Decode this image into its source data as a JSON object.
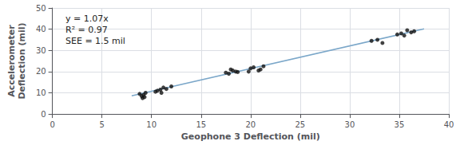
{
  "chart_data": {
    "type": "scatter",
    "xlabel": "Geophone 3 Deflection (mil)",
    "ylabel": "Accelerometer\nDeflection (mil)",
    "annotation": "y = 1.07x\nR² = 0.97\nSEE = 1.5 mil",
    "xlim": [
      0,
      40
    ],
    "ylim": [
      0,
      50
    ],
    "xticks": [
      0,
      5,
      10,
      15,
      20,
      25,
      30,
      35,
      40
    ],
    "yticks": [
      0,
      10,
      20,
      30,
      40,
      50
    ],
    "grid": true,
    "series": [
      {
        "type": "line",
        "color": "#7ba7c9",
        "x": [
          8.0,
          37.5
        ],
        "values": [
          8.56,
          40.125
        ]
      },
      {
        "type": "scatter",
        "color": "#111111",
        "marker": "circle",
        "x": [
          8.8,
          9.0,
          9.1,
          9.2,
          9.3,
          9.4,
          10.4,
          10.6,
          10.9,
          11.0,
          11.2,
          11.5,
          12.0,
          17.5,
          17.8,
          18.0,
          18.2,
          18.5,
          18.7,
          19.8,
          20.0,
          20.3,
          20.8,
          21.0,
          21.3,
          32.2,
          32.8,
          33.3,
          34.8,
          35.2,
          35.5,
          35.8,
          36.2,
          36.5
        ],
        "values": [
          9.5,
          8.5,
          7.5,
          9.0,
          8.0,
          10.0,
          10.5,
          11.0,
          11.5,
          10.0,
          12.5,
          11.8,
          13.0,
          19.5,
          19.0,
          21.0,
          20.5,
          20.0,
          19.8,
          20.0,
          21.5,
          22.0,
          20.5,
          21.0,
          22.5,
          34.5,
          35.0,
          33.5,
          37.5,
          38.0,
          37.0,
          39.5,
          38.5,
          39.0
        ]
      }
    ]
  }
}
